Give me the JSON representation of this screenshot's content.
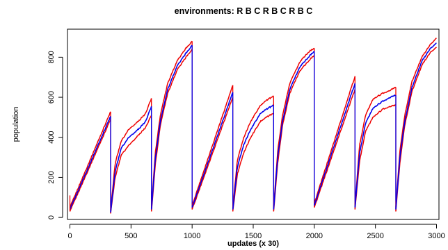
{
  "chart_data": {
    "type": "line",
    "title": "environments: R B C R B C R B C",
    "xlabel": "updates (x 30)",
    "ylabel": "population",
    "xlim": [
      -20,
      3020
    ],
    "ylim": [
      -10,
      940
    ],
    "x_ticks": [
      0,
      500,
      1000,
      1500,
      2000,
      2500,
      3000
    ],
    "y_ticks": [
      0,
      200,
      400,
      600,
      800
    ],
    "grid": false,
    "legend": "none",
    "colors": {
      "mean": "#0000ee",
      "bound": "#ee0000"
    },
    "segments": [
      {
        "start": 0,
        "end": 333,
        "environment": "R",
        "mean": [
          [
            0,
            40
          ],
          [
            333,
            505
          ]
        ],
        "low": [
          [
            0,
            30
          ],
          [
            333,
            490
          ]
        ],
        "high": [
          [
            0,
            50
          ],
          [
            333,
            528
          ]
        ]
      },
      {
        "start": 333,
        "end": 667,
        "environment": "B",
        "mean": [
          [
            333,
            25
          ],
          [
            370,
            230
          ],
          [
            420,
            345
          ],
          [
            480,
            400
          ],
          [
            560,
            440
          ],
          [
            620,
            480
          ],
          [
            667,
            555
          ]
        ],
        "low": [
          [
            333,
            20
          ],
          [
            370,
            200
          ],
          [
            420,
            310
          ],
          [
            480,
            360
          ],
          [
            560,
            410
          ],
          [
            620,
            450
          ],
          [
            667,
            510
          ]
        ],
        "high": [
          [
            333,
            35
          ],
          [
            370,
            270
          ],
          [
            420,
            380
          ],
          [
            480,
            440
          ],
          [
            560,
            480
          ],
          [
            620,
            520
          ],
          [
            667,
            595
          ]
        ]
      },
      {
        "start": 667,
        "end": 1000,
        "environment": "C",
        "mean": [
          [
            667,
            40
          ],
          [
            700,
            300
          ],
          [
            740,
            480
          ],
          [
            800,
            640
          ],
          [
            880,
            760
          ],
          [
            950,
            820
          ],
          [
            1000,
            860
          ]
        ],
        "low": [
          [
            667,
            30
          ],
          [
            700,
            270
          ],
          [
            740,
            460
          ],
          [
            800,
            620
          ],
          [
            880,
            740
          ],
          [
            950,
            800
          ],
          [
            1000,
            840
          ]
        ],
        "high": [
          [
            667,
            50
          ],
          [
            700,
            330
          ],
          [
            740,
            510
          ],
          [
            800,
            670
          ],
          [
            880,
            785
          ],
          [
            950,
            845
          ],
          [
            1000,
            880
          ]
        ]
      },
      {
        "start": 1000,
        "end": 1333,
        "environment": "R",
        "mean": [
          [
            1000,
            50
          ],
          [
            1333,
            625
          ]
        ],
        "low": [
          [
            1000,
            40
          ],
          [
            1333,
            600
          ]
        ],
        "high": [
          [
            1000,
            60
          ],
          [
            1333,
            660
          ]
        ]
      },
      {
        "start": 1333,
        "end": 1667,
        "environment": "B",
        "mean": [
          [
            1333,
            40
          ],
          [
            1370,
            250
          ],
          [
            1420,
            360
          ],
          [
            1480,
            440
          ],
          [
            1560,
            520
          ],
          [
            1620,
            545
          ],
          [
            1667,
            560
          ]
        ],
        "low": [
          [
            1333,
            30
          ],
          [
            1370,
            215
          ],
          [
            1420,
            320
          ],
          [
            1480,
            400
          ],
          [
            1560,
            480
          ],
          [
            1620,
            505
          ],
          [
            1667,
            520
          ]
        ],
        "high": [
          [
            1333,
            50
          ],
          [
            1370,
            285
          ],
          [
            1420,
            395
          ],
          [
            1480,
            480
          ],
          [
            1560,
            560
          ],
          [
            1620,
            590
          ],
          [
            1667,
            605
          ]
        ]
      },
      {
        "start": 1667,
        "end": 2000,
        "environment": "C",
        "mean": [
          [
            1667,
            40
          ],
          [
            1700,
            300
          ],
          [
            1740,
            480
          ],
          [
            1800,
            640
          ],
          [
            1880,
            750
          ],
          [
            1950,
            800
          ],
          [
            2000,
            830
          ]
        ],
        "low": [
          [
            1667,
            30
          ],
          [
            1700,
            270
          ],
          [
            1740,
            460
          ],
          [
            1800,
            620
          ],
          [
            1880,
            730
          ],
          [
            1950,
            780
          ],
          [
            2000,
            810
          ]
        ],
        "high": [
          [
            1667,
            50
          ],
          [
            1700,
            330
          ],
          [
            1740,
            510
          ],
          [
            1800,
            670
          ],
          [
            1880,
            775
          ],
          [
            1950,
            825
          ],
          [
            2000,
            845
          ]
        ]
      },
      {
        "start": 2000,
        "end": 2333,
        "environment": "R",
        "mean": [
          [
            2000,
            60
          ],
          [
            2333,
            670
          ]
        ],
        "low": [
          [
            2000,
            50
          ],
          [
            2333,
            640
          ]
        ],
        "high": [
          [
            2000,
            70
          ],
          [
            2333,
            705
          ]
        ]
      },
      {
        "start": 2333,
        "end": 2667,
        "environment": "B",
        "mean": [
          [
            2333,
            50
          ],
          [
            2370,
            320
          ],
          [
            2420,
            470
          ],
          [
            2480,
            545
          ],
          [
            2560,
            580
          ],
          [
            2620,
            600
          ],
          [
            2667,
            610
          ]
        ],
        "low": [
          [
            2333,
            40
          ],
          [
            2370,
            280
          ],
          [
            2420,
            430
          ],
          [
            2480,
            500
          ],
          [
            2560,
            540
          ],
          [
            2620,
            555
          ],
          [
            2667,
            560
          ]
        ],
        "high": [
          [
            2333,
            60
          ],
          [
            2370,
            360
          ],
          [
            2420,
            510
          ],
          [
            2480,
            590
          ],
          [
            2560,
            620
          ],
          [
            2620,
            635
          ],
          [
            2667,
            650
          ]
        ]
      },
      {
        "start": 2667,
        "end": 3000,
        "environment": "C",
        "mean": [
          [
            2667,
            40
          ],
          [
            2700,
            300
          ],
          [
            2740,
            480
          ],
          [
            2800,
            650
          ],
          [
            2880,
            780
          ],
          [
            2950,
            845
          ],
          [
            3000,
            870
          ]
        ],
        "low": [
          [
            2667,
            30
          ],
          [
            2700,
            270
          ],
          [
            2740,
            460
          ],
          [
            2800,
            630
          ],
          [
            2880,
            760
          ],
          [
            2950,
            825
          ],
          [
            3000,
            850
          ]
        ],
        "high": [
          [
            2667,
            50
          ],
          [
            2700,
            330
          ],
          [
            2740,
            510
          ],
          [
            2800,
            680
          ],
          [
            2880,
            800
          ],
          [
            2950,
            865
          ],
          [
            3000,
            895
          ]
        ]
      }
    ]
  }
}
